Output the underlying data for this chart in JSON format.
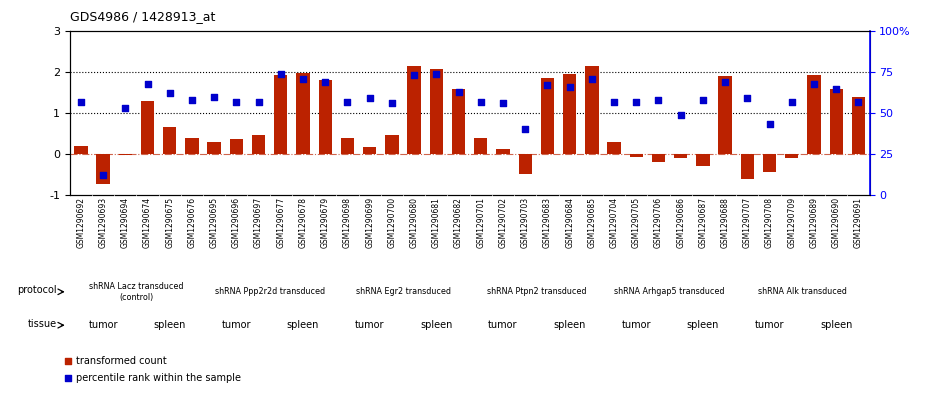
{
  "title": "GDS4986 / 1428913_at",
  "samples": [
    "GSM1290692",
    "GSM1290693",
    "GSM1290694",
    "GSM1290674",
    "GSM1290675",
    "GSM1290676",
    "GSM1290695",
    "GSM1290696",
    "GSM1290697",
    "GSM1290677",
    "GSM1290678",
    "GSM1290679",
    "GSM1290698",
    "GSM1290699",
    "GSM1290700",
    "GSM1290680",
    "GSM1290681",
    "GSM1290682",
    "GSM1290701",
    "GSM1290702",
    "GSM1290703",
    "GSM1290683",
    "GSM1290684",
    "GSM1290685",
    "GSM1290704",
    "GSM1290705",
    "GSM1290706",
    "GSM1290686",
    "GSM1290687",
    "GSM1290688",
    "GSM1290707",
    "GSM1290708",
    "GSM1290709",
    "GSM1290689",
    "GSM1290690",
    "GSM1290691"
  ],
  "bar_values": [
    0.2,
    -0.75,
    -0.03,
    1.3,
    0.65,
    0.38,
    0.3,
    0.35,
    0.45,
    1.92,
    1.98,
    1.8,
    0.38,
    0.17,
    0.45,
    2.15,
    2.08,
    1.58,
    0.38,
    0.12,
    -0.5,
    1.85,
    1.95,
    2.15,
    0.3,
    -0.08,
    -0.2,
    -0.1,
    -0.3,
    1.9,
    -0.62,
    -0.45,
    -0.1,
    1.92,
    1.58,
    1.38
  ],
  "scatter_pct": [
    57,
    12,
    53,
    68,
    62,
    58,
    60,
    57,
    57,
    74,
    71,
    69,
    57,
    59,
    56,
    73,
    74,
    63,
    57,
    56,
    40,
    67,
    66,
    71,
    57,
    57,
    58,
    49,
    58,
    69,
    59,
    43,
    57,
    68,
    65,
    57
  ],
  "bar_color": "#bb2200",
  "scatter_color": "#0000cc",
  "ylim_left": [
    -1,
    3
  ],
  "ylim_right": [
    0,
    100
  ],
  "yticks_left": [
    -1,
    0,
    1,
    2,
    3
  ],
  "yticks_right": [
    0,
    25,
    50,
    75,
    100
  ],
  "yticklabels_right": [
    "0",
    "25",
    "50",
    "75",
    "100%"
  ],
  "hlines_dotted": [
    1.0,
    2.0
  ],
  "protocols": [
    {
      "label": "shRNA Lacz transduced\n(control)",
      "start": 0,
      "end": 6,
      "color": "#ccffcc"
    },
    {
      "label": "shRNA Ppp2r2d transduced",
      "start": 6,
      "end": 12,
      "color": "#aaddaa"
    },
    {
      "label": "shRNA Egr2 transduced",
      "start": 12,
      "end": 18,
      "color": "#ccffcc"
    },
    {
      "label": "shRNA Ptpn2 transduced",
      "start": 18,
      "end": 24,
      "color": "#aaddaa"
    },
    {
      "label": "shRNA Arhgap5 transduced",
      "start": 24,
      "end": 30,
      "color": "#ccffcc"
    },
    {
      "label": "shRNA Alk transduced",
      "start": 30,
      "end": 36,
      "color": "#aaddaa"
    }
  ],
  "tissues": [
    {
      "label": "tumor",
      "start": 0,
      "end": 3,
      "color": "#cc66cc"
    },
    {
      "label": "spleen",
      "start": 3,
      "end": 6,
      "color": "#ff88ff"
    },
    {
      "label": "tumor",
      "start": 6,
      "end": 9,
      "color": "#cc66cc"
    },
    {
      "label": "spleen",
      "start": 9,
      "end": 12,
      "color": "#ff88ff"
    },
    {
      "label": "tumor",
      "start": 12,
      "end": 15,
      "color": "#cc66cc"
    },
    {
      "label": "spleen",
      "start": 15,
      "end": 18,
      "color": "#ff88ff"
    },
    {
      "label": "tumor",
      "start": 18,
      "end": 21,
      "color": "#cc66cc"
    },
    {
      "label": "spleen",
      "start": 21,
      "end": 24,
      "color": "#ff88ff"
    },
    {
      "label": "tumor",
      "start": 24,
      "end": 27,
      "color": "#cc66cc"
    },
    {
      "label": "spleen",
      "start": 27,
      "end": 30,
      "color": "#ff88ff"
    },
    {
      "label": "tumor",
      "start": 30,
      "end": 33,
      "color": "#cc66cc"
    },
    {
      "label": "spleen",
      "start": 33,
      "end": 36,
      "color": "#ff88ff"
    }
  ]
}
